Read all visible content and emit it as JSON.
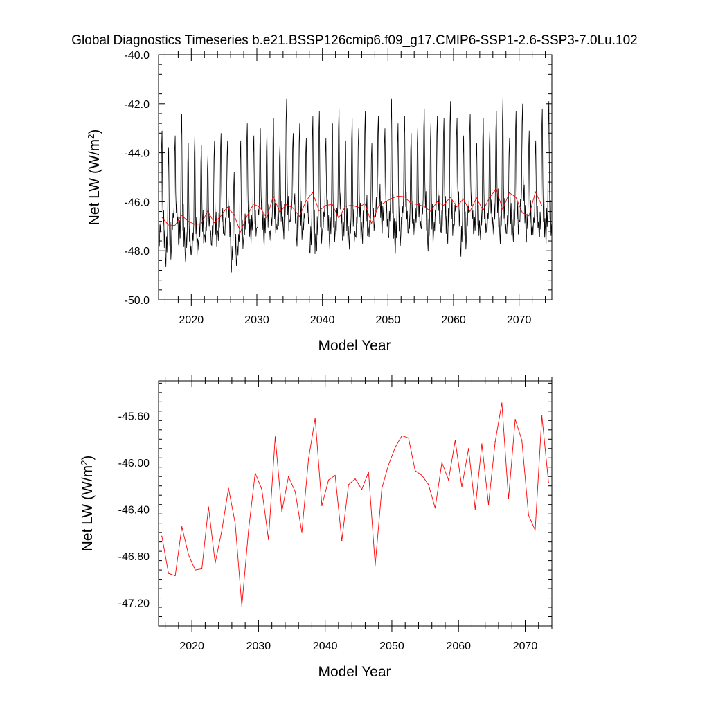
{
  "title": "Global Diagnostics Timeseries b.e21.BSSP126cmip6.f09_g17.CMIP6-SSP1-2.6-SSP3-7.0Lu.102",
  "colors": {
    "monthly": "#000000",
    "annual": "#ff0000",
    "axis": "#000000"
  },
  "chart_data": [
    {
      "type": "line",
      "name": "top-panel",
      "xlabel": "Model Year",
      "ylabel_main": "Net LW (W/m",
      "ylabel_sup": "2",
      "ylabel_close": ")",
      "xlim": [
        2015,
        2075
      ],
      "ylim": [
        -50.0,
        -40.0
      ],
      "xticks": [
        2020,
        2030,
        2040,
        2050,
        2060,
        2070
      ],
      "xtick_labels": [
        "2020",
        "2030",
        "2040",
        "2050",
        "2060",
        "2070"
      ],
      "yticks": [
        -50.0,
        -48.0,
        -46.0,
        -44.0,
        -42.0,
        -40.0
      ],
      "ytick_labels": [
        "-50.0",
        "-48.0",
        "-46.0",
        "-44.0",
        "-42.0",
        "-40.0"
      ],
      "monthly_peaks": [
        -43.1,
        -43.8,
        -43.3,
        -42.4,
        -43.6,
        -43.2,
        -43.7,
        -44.1,
        -43.5,
        -43.2,
        -43.5,
        -44.8,
        -43.5,
        -42.8,
        -43.3,
        -43.0,
        -43.2,
        -42.6,
        -43.6,
        -41.8,
        -43.2,
        -42.8,
        -43.4,
        -42.5,
        -42.3,
        -43.4,
        -42.8,
        -42.2,
        -43.5,
        -42.6,
        -43.0,
        -42.3,
        -43.6,
        -42.5,
        -43.0,
        -41.8,
        -42.8,
        -42.5,
        -43.2,
        -43.0,
        -42.2,
        -42.8,
        -42.5,
        -42.6,
        -41.9,
        -42.6,
        -43.3,
        -42.4,
        -43.6,
        -42.6,
        -43.0,
        -42.3,
        -41.7,
        -43.4,
        -42.3,
        -42.0,
        -43.1,
        -43.5,
        -42.2,
        -41.9
      ],
      "monthly_troughs": [
        -48.3,
        -48.9,
        -47.5,
        -48.4,
        -48.8,
        -48.7,
        -48.2,
        -48.0,
        -48.3,
        -47.9,
        -47.8,
        -49.1,
        -48.6,
        -47.9,
        -48.0,
        -47.5,
        -48.1,
        -48.0,
        -47.6,
        -47.9,
        -47.2,
        -48.1,
        -47.5,
        -48.7,
        -48.4,
        -47.5,
        -48.2,
        -47.6,
        -48.1,
        -48.3,
        -47.9,
        -48.0,
        -47.8,
        -47.1,
        -47.6,
        -48.0,
        -48.4,
        -47.4,
        -47.8,
        -47.7,
        -47.6,
        -48.3,
        -47.6,
        -47.8,
        -48.1,
        -47.4,
        -48.5,
        -47.4,
        -47.8,
        -47.9,
        -47.7,
        -47.6,
        -48.2,
        -47.8,
        -48.0,
        -47.3,
        -47.9,
        -47.7,
        -48.0,
        -48.1
      ]
    },
    {
      "type": "line",
      "name": "bottom-panel",
      "xlabel": "Model Year",
      "ylabel_main": "Net LW (W/m",
      "ylabel_sup": "2",
      "ylabel_close": ")",
      "xlim": [
        2015,
        2074
      ],
      "ylim": [
        -47.4,
        -45.3
      ],
      "xticks": [
        2020,
        2030,
        2040,
        2050,
        2060,
        2070
      ],
      "xtick_labels": [
        "2020",
        "2030",
        "2040",
        "2050",
        "2060",
        "2070"
      ],
      "yticks": [
        -47.2,
        -46.8,
        -46.4,
        -46.0,
        -45.6
      ],
      "ytick_labels": [
        "-47.20",
        "-46.80",
        "-46.40",
        "-46.00",
        "-45.60"
      ],
      "series": [
        {
          "name": "Annual mean",
          "x": [
            2015.5,
            2016.5,
            2017.5,
            2018.5,
            2019.5,
            2020.5,
            2021.5,
            2022.5,
            2023.5,
            2024.5,
            2025.5,
            2026.5,
            2027.5,
            2028.5,
            2029.5,
            2030.5,
            2031.5,
            2032.5,
            2033.5,
            2034.5,
            2035.5,
            2036.5,
            2037.5,
            2038.5,
            2039.5,
            2040.5,
            2041.5,
            2042.5,
            2043.5,
            2044.5,
            2045.5,
            2046.5,
            2047.5,
            2048.5,
            2049.5,
            2050.5,
            2051.5,
            2052.5,
            2053.5,
            2054.5,
            2055.5,
            2056.5,
            2057.5,
            2058.5,
            2059.5,
            2060.5,
            2061.5,
            2062.5,
            2063.5,
            2064.5,
            2065.5,
            2066.5,
            2067.5,
            2068.5,
            2069.5,
            2070.5,
            2071.5,
            2072.5,
            2073.5
          ],
          "values": [
            -46.63,
            -46.95,
            -46.97,
            -46.55,
            -46.79,
            -46.92,
            -46.91,
            -46.38,
            -46.86,
            -46.58,
            -46.22,
            -46.52,
            -47.23,
            -46.58,
            -46.09,
            -46.23,
            -46.66,
            -45.78,
            -46.42,
            -46.12,
            -46.25,
            -46.6,
            -45.97,
            -45.62,
            -46.37,
            -46.15,
            -46.11,
            -46.67,
            -46.19,
            -46.14,
            -46.23,
            -46.08,
            -46.88,
            -46.22,
            -46.02,
            -45.87,
            -45.77,
            -45.79,
            -46.07,
            -46.11,
            -46.19,
            -46.39,
            -46.0,
            -46.15,
            -45.81,
            -46.21,
            -45.88,
            -46.4,
            -45.84,
            -46.36,
            -45.82,
            -45.49,
            -46.31,
            -45.63,
            -45.81,
            -46.45,
            -46.58,
            -45.6,
            -46.17
          ]
        }
      ]
    }
  ]
}
